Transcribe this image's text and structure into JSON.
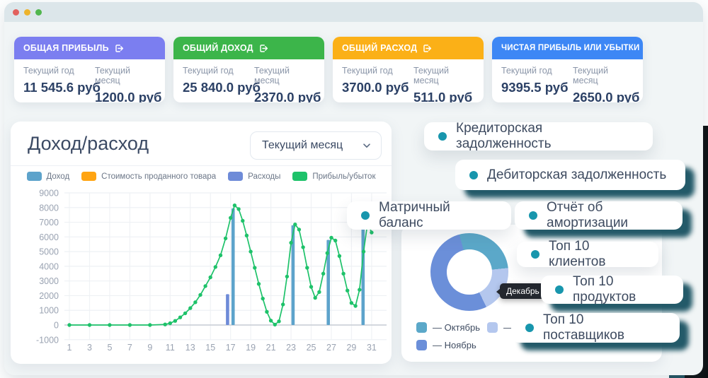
{
  "window": {
    "traffic_lights": [
      "#e2615e",
      "#edb32c",
      "#51b64e"
    ],
    "titlebar_color": "#dce6ea"
  },
  "stat_labels": {
    "year": "Текущий год",
    "month": "Текущий месяц"
  },
  "stat_cards": [
    {
      "title": "ОБЩАЯ ПРИБЫЛЬ",
      "color": "#7b7ef0",
      "year_value": "11 545.6 руб",
      "month_value": "1200.0 руб"
    },
    {
      "title": "ОБЩИЙ ДОХОД",
      "color": "#3cb54a",
      "year_value": "25 840.0 руб",
      "month_value": "2370.0 руб"
    },
    {
      "title": "ОБЩИЙ РАСХОД",
      "color": "#fbb017",
      "year_value": "3700.0 руб",
      "month_value": "511.0 руб"
    },
    {
      "title": "ЧИСТАЯ ПРИБЫЛЬ ИЛИ УБЫТКИ",
      "color": "#3d87f5",
      "year_value": "9395.5 руб",
      "month_value": "2650.0 руб"
    }
  ],
  "chart_panel": {
    "title": "Доход/расход",
    "period_selector": "Текущий месяц"
  },
  "chips": {
    "dot_color": "#1896ad",
    "items": [
      {
        "label": "Кредиторская задолженность"
      },
      {
        "label": "Дебиторская задолженность"
      },
      {
        "label": "Матричный баланс"
      },
      {
        "label": "Отчёт об амортизации"
      },
      {
        "label": "Топ 10 клиентов"
      },
      {
        "label": "Топ 10 продуктов"
      },
      {
        "label": "Топ 10 поставщиков"
      }
    ]
  },
  "chart_data": [
    {
      "type": "line+bar",
      "title": "Доход/расход",
      "x_axis": "день месяца",
      "ylim": [
        -1000,
        9000
      ],
      "y_ticks": [
        9000,
        8000,
        7000,
        6000,
        5000,
        4000,
        3000,
        2000,
        1000,
        0,
        -1000
      ],
      "x_ticks": [
        1,
        3,
        5,
        7,
        9,
        11,
        13,
        15,
        17,
        19,
        21,
        23,
        25,
        27,
        29,
        31
      ],
      "grid": true,
      "legend_position": "top",
      "legend": [
        {
          "name": "Доход",
          "color": "#5da3cb"
        },
        {
          "name": "Стоимость проданного товара",
          "color": "#ffa412"
        },
        {
          "name": "Расходы",
          "color": "#6e8bd8"
        },
        {
          "name": "Прибыль/убыток",
          "color": "#1ec26a"
        }
      ],
      "bars": [
        {
          "x": 16.7,
          "value": 2100,
          "series": "Расходы"
        },
        {
          "x": 17.25,
          "value": 7950,
          "series": "Доход"
        },
        {
          "x": 23.2,
          "value": 6800,
          "series": "Доход"
        },
        {
          "x": 26.7,
          "value": 5800,
          "series": "Доход"
        },
        {
          "x": 30.15,
          "value": 6600,
          "series": "Доход"
        }
      ],
      "line_series": {
        "name": "Прибыль/убыток",
        "points": [
          [
            1,
            0
          ],
          [
            3,
            0
          ],
          [
            5,
            0
          ],
          [
            7,
            0
          ],
          [
            9,
            0
          ],
          [
            10.5,
            40
          ],
          [
            11,
            120
          ],
          [
            11.5,
            280
          ],
          [
            12,
            520
          ],
          [
            12.5,
            800
          ],
          [
            13,
            1150
          ],
          [
            13.5,
            1550
          ],
          [
            14,
            2050
          ],
          [
            14.5,
            2650
          ],
          [
            15,
            3250
          ],
          [
            15.5,
            3950
          ],
          [
            16,
            4750
          ],
          [
            16.5,
            5900
          ],
          [
            17,
            7300
          ],
          [
            17.4,
            8150
          ],
          [
            17.8,
            7900
          ],
          [
            18.2,
            7100
          ],
          [
            18.6,
            6100
          ],
          [
            19,
            5000
          ],
          [
            19.4,
            3900
          ],
          [
            19.8,
            2800
          ],
          [
            20.2,
            1800
          ],
          [
            20.6,
            900
          ],
          [
            21,
            300
          ],
          [
            21.4,
            30
          ],
          [
            21.8,
            250
          ],
          [
            22.2,
            1400
          ],
          [
            22.6,
            3300
          ],
          [
            23,
            5600
          ],
          [
            23.4,
            6850
          ],
          [
            23.8,
            6500
          ],
          [
            24.2,
            5300
          ],
          [
            24.6,
            3900
          ],
          [
            25,
            2600
          ],
          [
            25.4,
            1850
          ],
          [
            25.8,
            2250
          ],
          [
            26.2,
            3500
          ],
          [
            26.6,
            4900
          ],
          [
            27,
            5950
          ],
          [
            27.4,
            5750
          ],
          [
            27.8,
            4700
          ],
          [
            28.2,
            3500
          ],
          [
            28.6,
            2350
          ],
          [
            29,
            1500
          ],
          [
            29.4,
            1300
          ],
          [
            29.8,
            2400
          ],
          [
            30.2,
            5000
          ],
          [
            30.6,
            6950
          ],
          [
            31,
            6300
          ]
        ]
      }
    },
    {
      "type": "donut",
      "start_angle_deg": -15,
      "slices": [
        {
          "label": "Октябрь",
          "color": "#5ba8c9",
          "percent": 27.5
        },
        {
          "label": "Декабрь",
          "color": "#b4c7ee",
          "percent": 19.5
        },
        {
          "label": "Ноябрь",
          "color": "#6b8fd9",
          "percent": 53
        }
      ],
      "legend": [
        {
          "label": "— Октябрь"
        },
        {
          "label": "— Декабрь"
        },
        {
          "label": "— Ноябрь"
        }
      ],
      "tooltip": "Декабрь"
    }
  ]
}
